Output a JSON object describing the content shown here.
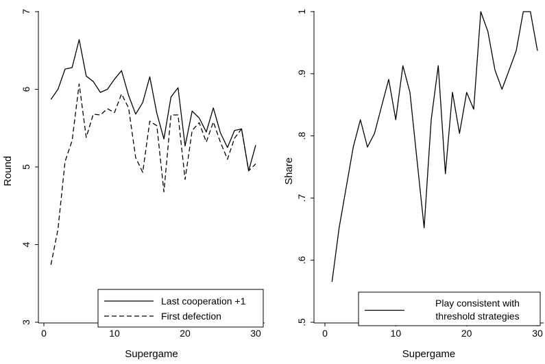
{
  "chart_data": [
    {
      "type": "line",
      "xlabel": "Supergame",
      "ylabel": "Round",
      "xlim": [
        0,
        30
      ],
      "ylim": [
        3,
        7
      ],
      "xticks": [
        "0",
        "10",
        "20",
        "30"
      ],
      "yticks": [
        "3",
        "4",
        "5",
        "6",
        "7"
      ],
      "grid": false,
      "legend_position": "bottom-right",
      "x": [
        1,
        2,
        3,
        4,
        5,
        6,
        7,
        8,
        9,
        10,
        11,
        12,
        13,
        14,
        15,
        16,
        17,
        18,
        19,
        20,
        21,
        22,
        23,
        24,
        25,
        26,
        27,
        28,
        29,
        30
      ],
      "series": [
        {
          "name": "Last cooperation +1",
          "style": "solid",
          "values": [
            5.87,
            6.0,
            6.26,
            6.28,
            6.64,
            6.17,
            6.1,
            5.96,
            6.0,
            6.13,
            6.24,
            5.92,
            5.68,
            5.83,
            6.16,
            5.69,
            5.36,
            5.9,
            6.02,
            5.27,
            5.72,
            5.63,
            5.45,
            5.76,
            5.44,
            5.25,
            5.47,
            5.49,
            4.95,
            5.28
          ]
        },
        {
          "name": "First defection",
          "style": "dashed",
          "values": [
            3.74,
            4.2,
            5.07,
            5.34,
            6.07,
            5.38,
            5.68,
            5.67,
            5.75,
            5.7,
            5.94,
            5.76,
            5.12,
            4.93,
            5.59,
            5.53,
            4.68,
            5.67,
            5.67,
            4.84,
            5.47,
            5.57,
            5.32,
            5.58,
            5.32,
            5.1,
            5.37,
            5.49,
            4.95,
            5.04
          ]
        }
      ]
    },
    {
      "type": "line",
      "xlabel": "Supergame",
      "ylabel": "Share",
      "xlim": [
        0,
        30
      ],
      "ylim": [
        0.5,
        1.0
      ],
      "xticks": [
        "0",
        "10",
        "20",
        "30"
      ],
      "yticks": [
        ".5",
        ".6",
        ".7",
        ".8",
        ".9",
        "1"
      ],
      "grid": false,
      "legend_position": "bottom-right",
      "x": [
        1,
        2,
        3,
        4,
        5,
        6,
        7,
        8,
        9,
        10,
        11,
        12,
        13,
        14,
        15,
        16,
        17,
        18,
        19,
        20,
        21,
        22,
        23,
        24,
        25,
        26,
        27,
        28,
        29,
        30
      ],
      "series": [
        {
          "name": "Play consistent with threshold strategies",
          "legend_lines": [
            "Play consistent with",
            "threshold strategies"
          ],
          "style": "solid",
          "values": [
            0.565,
            0.652,
            0.717,
            0.782,
            0.826,
            0.782,
            0.804,
            0.848,
            0.891,
            0.826,
            0.913,
            0.87,
            0.761,
            0.652,
            0.826,
            0.913,
            0.739,
            0.87,
            0.804,
            0.87,
            0.843,
            1.0,
            0.968,
            0.906,
            0.875,
            0.906,
            0.937,
            1.0,
            1.0,
            0.937
          ]
        }
      ]
    }
  ]
}
